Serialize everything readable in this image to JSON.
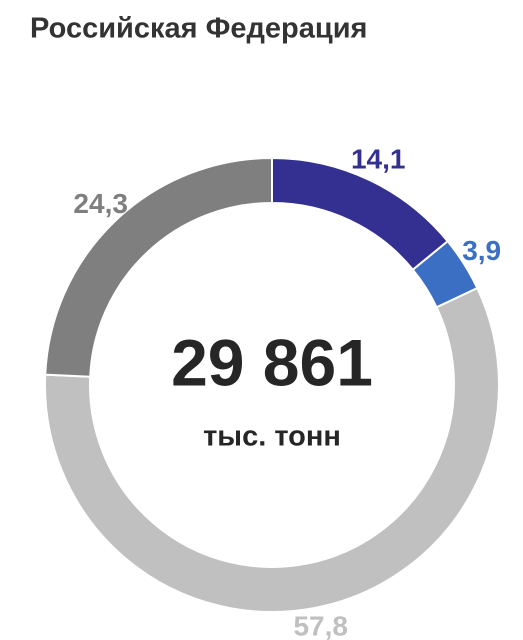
{
  "chart_data": {
    "type": "donut",
    "title": "Российская Федерация",
    "values": [
      14.1,
      3.9,
      57.8,
      24.3
    ],
    "value_labels": [
      "14,1",
      "3,9",
      "57,8",
      "24,3"
    ],
    "colors": [
      "#343092",
      "#3a6fc4",
      "#c0c0c0",
      "#7f7f7f"
    ],
    "center_value": "29 861",
    "center_unit": "тыс. тонн"
  }
}
